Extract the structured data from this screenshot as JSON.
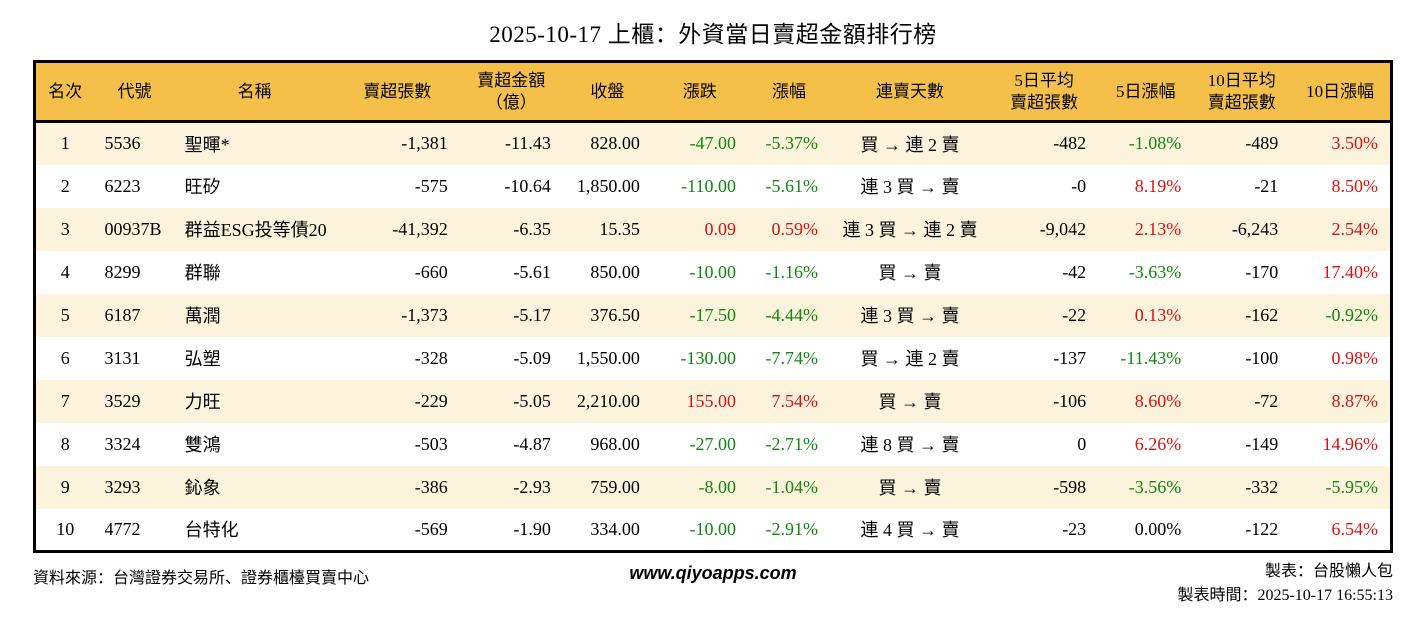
{
  "title": "2025-10-17 上櫃：外資當日賣超金額排行榜",
  "colors": {
    "up_red": "#dd1111",
    "down_green": "#108810",
    "header_bg": "#f5c04a",
    "row_alt_bg": "#fbf3dc",
    "border": "#000000"
  },
  "table": {
    "headers": [
      "名次",
      "代號",
      "名稱",
      "賣超張數",
      "賣超金額\n（億）",
      "收盤",
      "漲跌",
      "漲幅",
      "連賣天數",
      "5日平均\n賣超張數",
      "5日漲幅",
      "10日平均\n賣超張數",
      "10日漲幅"
    ],
    "rows": [
      {
        "cells": [
          [
            "1",
            null
          ],
          [
            "5536",
            null
          ],
          [
            "聖暉*",
            null
          ],
          [
            "-1,381",
            null
          ],
          [
            "-11.43",
            null
          ],
          [
            "828.00",
            null
          ],
          [
            "-47.00",
            "down"
          ],
          [
            "-5.37%",
            "down"
          ],
          [
            "買 → 連 2 賣",
            null
          ],
          [
            "-482",
            null
          ],
          [
            "-1.08%",
            "down"
          ],
          [
            "-489",
            null
          ],
          [
            "3.50%",
            "up"
          ]
        ]
      },
      {
        "cells": [
          [
            "2",
            null
          ],
          [
            "6223",
            null
          ],
          [
            "旺矽",
            null
          ],
          [
            "-575",
            null
          ],
          [
            "-10.64",
            null
          ],
          [
            "1,850.00",
            null
          ],
          [
            "-110.00",
            "down"
          ],
          [
            "-5.61%",
            "down"
          ],
          [
            "連 3 買 → 賣",
            null
          ],
          [
            "-0",
            null
          ],
          [
            "8.19%",
            "up"
          ],
          [
            "-21",
            null
          ],
          [
            "8.50%",
            "up"
          ]
        ]
      },
      {
        "cells": [
          [
            "3",
            null
          ],
          [
            "00937B",
            null
          ],
          [
            "群益ESG投等債20",
            null
          ],
          [
            "-41,392",
            null
          ],
          [
            "-6.35",
            null
          ],
          [
            "15.35",
            null
          ],
          [
            "0.09",
            "up"
          ],
          [
            "0.59%",
            "up"
          ],
          [
            "連 3 買 → 連 2 賣",
            null
          ],
          [
            "-9,042",
            null
          ],
          [
            "2.13%",
            "up"
          ],
          [
            "-6,243",
            null
          ],
          [
            "2.54%",
            "up"
          ]
        ]
      },
      {
        "cells": [
          [
            "4",
            null
          ],
          [
            "8299",
            null
          ],
          [
            "群聯",
            null
          ],
          [
            "-660",
            null
          ],
          [
            "-5.61",
            null
          ],
          [
            "850.00",
            null
          ],
          [
            "-10.00",
            "down"
          ],
          [
            "-1.16%",
            "down"
          ],
          [
            "買 → 賣",
            null
          ],
          [
            "-42",
            null
          ],
          [
            "-3.63%",
            "down"
          ],
          [
            "-170",
            null
          ],
          [
            "17.40%",
            "up"
          ]
        ]
      },
      {
        "cells": [
          [
            "5",
            null
          ],
          [
            "6187",
            null
          ],
          [
            "萬潤",
            null
          ],
          [
            "-1,373",
            null
          ],
          [
            "-5.17",
            null
          ],
          [
            "376.50",
            null
          ],
          [
            "-17.50",
            "down"
          ],
          [
            "-4.44%",
            "down"
          ],
          [
            "連 3 買 → 賣",
            null
          ],
          [
            "-22",
            null
          ],
          [
            "0.13%",
            "up"
          ],
          [
            "-162",
            null
          ],
          [
            "-0.92%",
            "down"
          ]
        ]
      },
      {
        "cells": [
          [
            "6",
            null
          ],
          [
            "3131",
            null
          ],
          [
            "弘塑",
            null
          ],
          [
            "-328",
            null
          ],
          [
            "-5.09",
            null
          ],
          [
            "1,550.00",
            null
          ],
          [
            "-130.00",
            "down"
          ],
          [
            "-7.74%",
            "down"
          ],
          [
            "買 → 連 2 賣",
            null
          ],
          [
            "-137",
            null
          ],
          [
            "-11.43%",
            "down"
          ],
          [
            "-100",
            null
          ],
          [
            "0.98%",
            "up"
          ]
        ]
      },
      {
        "cells": [
          [
            "7",
            null
          ],
          [
            "3529",
            null
          ],
          [
            "力旺",
            null
          ],
          [
            "-229",
            null
          ],
          [
            "-5.05",
            null
          ],
          [
            "2,210.00",
            null
          ],
          [
            "155.00",
            "up"
          ],
          [
            "7.54%",
            "up"
          ],
          [
            "買 → 賣",
            null
          ],
          [
            "-106",
            null
          ],
          [
            "8.60%",
            "up"
          ],
          [
            "-72",
            null
          ],
          [
            "8.87%",
            "up"
          ]
        ]
      },
      {
        "cells": [
          [
            "8",
            null
          ],
          [
            "3324",
            null
          ],
          [
            "雙鴻",
            null
          ],
          [
            "-503",
            null
          ],
          [
            "-4.87",
            null
          ],
          [
            "968.00",
            null
          ],
          [
            "-27.00",
            "down"
          ],
          [
            "-2.71%",
            "down"
          ],
          [
            "連 8 買 → 賣",
            null
          ],
          [
            "0",
            null
          ],
          [
            "6.26%",
            "up"
          ],
          [
            "-149",
            null
          ],
          [
            "14.96%",
            "up"
          ]
        ]
      },
      {
        "cells": [
          [
            "9",
            null
          ],
          [
            "3293",
            null
          ],
          [
            "鈊象",
            null
          ],
          [
            "-386",
            null
          ],
          [
            "-2.93",
            null
          ],
          [
            "759.00",
            null
          ],
          [
            "-8.00",
            "down"
          ],
          [
            "-1.04%",
            "down"
          ],
          [
            "買 → 賣",
            null
          ],
          [
            "-598",
            null
          ],
          [
            "-3.56%",
            "down"
          ],
          [
            "-332",
            null
          ],
          [
            "-5.95%",
            "down"
          ]
        ]
      },
      {
        "cells": [
          [
            "10",
            null
          ],
          [
            "4772",
            null
          ],
          [
            "台特化",
            null
          ],
          [
            "-569",
            null
          ],
          [
            "-1.90",
            null
          ],
          [
            "334.00",
            null
          ],
          [
            "-10.00",
            "down"
          ],
          [
            "-2.91%",
            "down"
          ],
          [
            "連 4 買 → 賣",
            null
          ],
          [
            "-23",
            null
          ],
          [
            "0.00%",
            null
          ],
          [
            "-122",
            null
          ],
          [
            "6.54%",
            "up"
          ]
        ]
      }
    ]
  },
  "footer": {
    "source": "資料來源：台灣證券交易所、證券櫃檯買賣中心",
    "website": "www.qiyoapps.com",
    "made_by": "製表：台股懶人包",
    "made_time": "製表時間：2025-10-17 16:55:13"
  }
}
